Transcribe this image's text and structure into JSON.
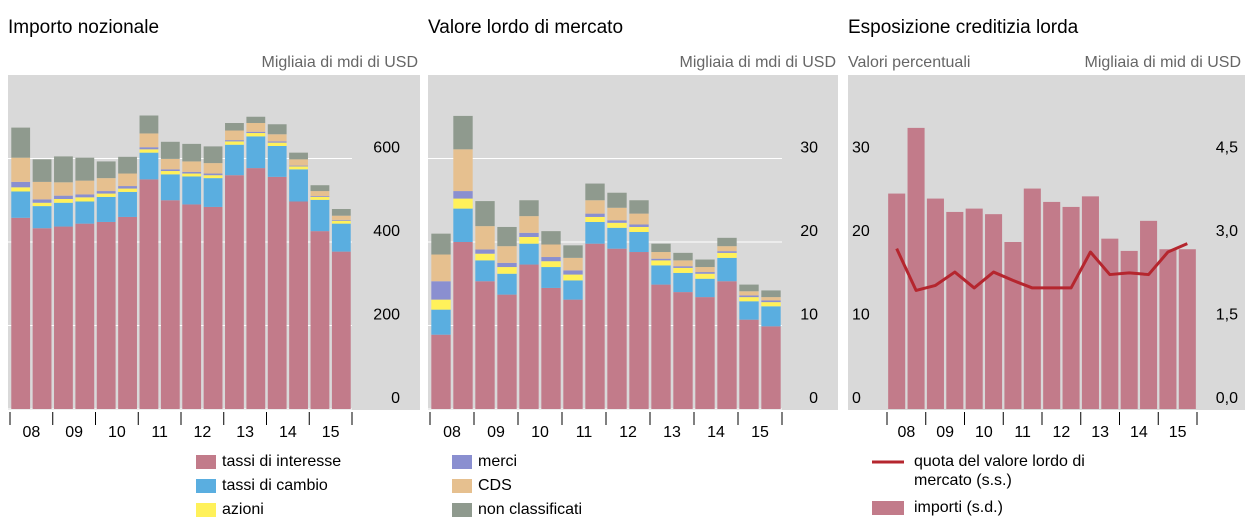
{
  "chart_data": [
    {
      "type": "bar",
      "stacked": true,
      "title": "Importo nozionale",
      "y_label": "Migliaia di mdi di USD",
      "categories": [
        "08",
        null,
        "09",
        null,
        "10",
        null,
        "11",
        null,
        "12",
        null,
        "13",
        null,
        "14",
        null,
        "15",
        null
      ],
      "ylim": [
        0,
        800
      ],
      "yticks": [
        0,
        200,
        400,
        600
      ],
      "grid": true,
      "series": [
        {
          "name": "tassi di interesse",
          "color": "#c27b8a",
          "values": [
            458,
            433,
            437,
            444,
            448,
            460,
            550,
            500,
            490,
            484,
            560,
            577,
            556,
            497,
            426,
            377
          ]
        },
        {
          "name": "tassi di cambio",
          "color": "#5aaee0",
          "values": [
            63,
            53,
            57,
            53,
            60,
            60,
            64,
            62,
            67,
            69,
            73,
            76,
            74,
            77,
            75,
            67
          ]
        },
        {
          "name": "azioni",
          "color": "#fff15a",
          "values": [
            10,
            8,
            9,
            10,
            8,
            8,
            8,
            8,
            7,
            7,
            8,
            8,
            8,
            7,
            7,
            7
          ]
        },
        {
          "name": "merci",
          "color": "#8a8fd0",
          "values": [
            13,
            8,
            8,
            7,
            6,
            6,
            5,
            4,
            4,
            4,
            3,
            3,
            3,
            2,
            2,
            2
          ]
        },
        {
          "name": "CDS",
          "color": "#e6c08f",
          "values": [
            58,
            42,
            32,
            33,
            31,
            30,
            33,
            25,
            25,
            25,
            23,
            21,
            17,
            15,
            12,
            10
          ]
        },
        {
          "name": "non classificati",
          "color": "#8f9a8e",
          "values": [
            72,
            54,
            62,
            55,
            40,
            40,
            43,
            41,
            42,
            40,
            18,
            15,
            24,
            16,
            14,
            16
          ]
        }
      ]
    },
    {
      "type": "bar",
      "stacked": true,
      "title": "Valore lordo di mercato",
      "y_label": "Migliaia di mdi di USD",
      "categories": [
        "08",
        null,
        "09",
        null,
        "10",
        null,
        "11",
        null,
        "12",
        null,
        "13",
        null,
        "14",
        null,
        "15",
        null
      ],
      "ylim": [
        0,
        40
      ],
      "yticks": [
        0,
        10,
        20,
        30
      ],
      "grid": true,
      "series": [
        {
          "color": "#c27b8a",
          "values": [
            8.9,
            20.0,
            15.3,
            13.7,
            17.3,
            14.5,
            13.1,
            19.8,
            19.2,
            18.8,
            14.9,
            14.0,
            13.4,
            15.3,
            10.7,
            9.9
          ]
        },
        {
          "color": "#5aaee0",
          "values": [
            3.0,
            4.0,
            2.5,
            2.5,
            2.5,
            2.5,
            2.3,
            2.6,
            2.5,
            2.4,
            2.3,
            2.3,
            2.2,
            2.8,
            2.2,
            2.4
          ]
        },
        {
          "color": "#fff15a",
          "values": [
            1.2,
            1.2,
            0.8,
            0.8,
            0.8,
            0.7,
            0.7,
            0.6,
            0.6,
            0.6,
            0.6,
            0.6,
            0.6,
            0.6,
            0.5,
            0.5
          ]
        },
        {
          "color": "#8a8fd0",
          "values": [
            2.2,
            0.9,
            0.5,
            0.5,
            0.5,
            0.5,
            0.5,
            0.4,
            0.3,
            0.3,
            0.2,
            0.2,
            0.2,
            0.2,
            0.2,
            0.2
          ]
        },
        {
          "color": "#e6c08f",
          "values": [
            3.2,
            5.0,
            2.8,
            2.0,
            2.0,
            1.5,
            1.5,
            1.6,
            1.5,
            1.3,
            0.8,
            0.7,
            0.6,
            0.6,
            0.5,
            0.4
          ]
        },
        {
          "color": "#8f9a8e",
          "values": [
            2.5,
            4.0,
            3.0,
            2.3,
            1.9,
            1.6,
            1.5,
            2.0,
            1.8,
            1.6,
            1.0,
            0.9,
            0.9,
            1.0,
            0.8,
            0.8
          ]
        }
      ]
    },
    {
      "type": "combo",
      "title": "Esposizione creditizia lorda",
      "y_label": "Valori percentuali",
      "y2_label": "Migliaia di mid di USD",
      "categories": [
        "08",
        null,
        "09",
        null,
        "10",
        null,
        "11",
        null,
        "12",
        null,
        "13",
        null,
        "14",
        null,
        "15",
        null
      ],
      "ylim": [
        0,
        40
      ],
      "yticks": [
        0,
        10,
        20,
        30
      ],
      "y2lim": [
        0,
        6
      ],
      "y2ticks": [
        {
          "value": 0,
          "label": "0,0"
        },
        {
          "value": 1.5,
          "label": "1,5"
        },
        {
          "value": 3,
          "label": "3,0"
        },
        {
          "value": 4.5,
          "label": "4,5"
        }
      ],
      "grid": false,
      "series": [
        {
          "name": "quota del valore lordo di mercato (s.s.)",
          "type": "line",
          "color": "#b5262e",
          "values": [
            19.2,
            14.2,
            14.8,
            16.4,
            14.5,
            16.4,
            15.4,
            14.5,
            14.5,
            14.5,
            18.8,
            16.1,
            16.3,
            16.1,
            18.8,
            19.8
          ]
        },
        {
          "name": "importi (s.d.)",
          "type": "bar",
          "axis": "y2",
          "color": "#c27b8a",
          "values": [
            3.87,
            5.05,
            3.78,
            3.54,
            3.6,
            3.5,
            3.0,
            3.96,
            3.72,
            3.63,
            3.82,
            3.06,
            2.84,
            3.38,
            2.87,
            2.87
          ]
        }
      ]
    }
  ]
}
